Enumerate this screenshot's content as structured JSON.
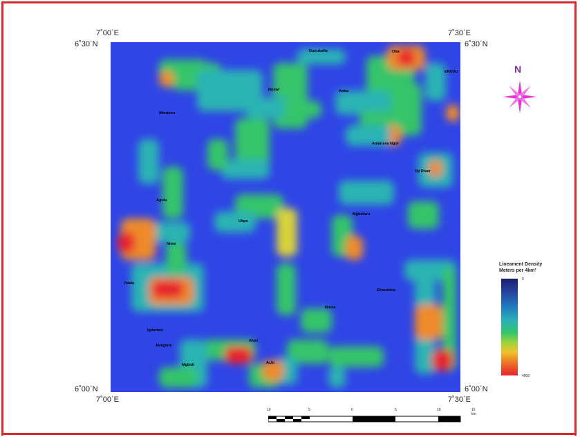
{
  "map": {
    "corner_labels": {
      "top_left_lon": "7˚00΄E",
      "top_right_lon": "7˚30΄E",
      "bottom_left_lon": "7˚00΄E",
      "bottom_right_lon": "7˚30΄E",
      "top_left_lat": "6˚30΄N",
      "top_right_lat": "6˚30΄N",
      "bottom_left_lat": "6˚00΄N",
      "bottom_right_lat": "6˚00΄N"
    },
    "north_label": "N",
    "towns": [
      "Dunukofia",
      "Oba",
      "ENUGU",
      "Nnewi",
      "Awka",
      "Ifitedunu",
      "Amansea Ngor",
      "Oji River",
      "Agulu",
      "Mgbakwu",
      "Ukpo",
      "Nimo",
      "Ihiala",
      "Ekwulobia",
      "Nnobi",
      "Igbariam",
      "Abagana",
      "Akpo",
      "Achi",
      "Mgbidi",
      "Ihembosi",
      "Nkwerre",
      "Ufuma",
      "Ozubulu"
    ],
    "colors": {
      "background": "#2f45e6",
      "frame": "#d8282f",
      "north_arrow": "#e830d6",
      "north_letter": "#8a2aa0"
    }
  },
  "legend": {
    "title": "Lineament Density",
    "subtitle": "Meters per 4km²",
    "max_label": "0",
    "min_label": "4005"
  },
  "scale_bar": {
    "labels": [
      "10",
      "5",
      "0",
      "5",
      "10",
      "15 km"
    ]
  }
}
